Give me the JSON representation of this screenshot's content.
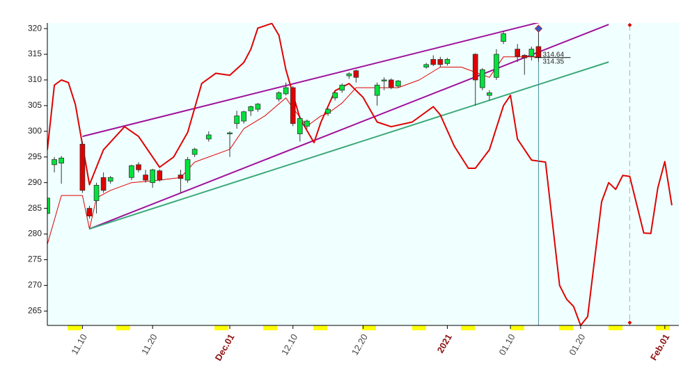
{
  "chart_data": {
    "type": "candlestick",
    "x": [
      "2020-11-05",
      "2020-11-06",
      "2020-11-07",
      "2020-11-10",
      "2020-11-11",
      "2020-11-12",
      "2020-11-13",
      "2020-11-14",
      "2020-11-17",
      "2020-11-18",
      "2020-11-19",
      "2020-11-20",
      "2020-11-21",
      "2020-11-24",
      "2020-11-25",
      "2020-11-26",
      "2020-11-28",
      "2020-12-01",
      "2020-12-02",
      "2020-12-03",
      "2020-12-04",
      "2020-12-05",
      "2020-12-08",
      "2020-12-09",
      "2020-12-10",
      "2020-12-11",
      "2020-12-12",
      "2020-12-15",
      "2020-12-16",
      "2020-12-17",
      "2020-12-18",
      "2020-12-19",
      "2020-12-22",
      "2020-12-23",
      "2020-12-24",
      "2020-12-25",
      "2020-12-29",
      "2020-12-30",
      "2020-12-31",
      "2021-01-01",
      "2021-01-05",
      "2021-01-06",
      "2021-01-07",
      "2021-01-08",
      "2021-01-09",
      "2021-01-11",
      "2021-01-12",
      "2021-01-13",
      "2021-01-14"
    ],
    "open": [
      284,
      293.5,
      293.8,
      297.5,
      285,
      286.5,
      291,
      290.3,
      291,
      293.5,
      291.5,
      290,
      292.3,
      291.5,
      290.5,
      295.5,
      298.5,
      299.5,
      301.5,
      302,
      304,
      304.3,
      306.3,
      307.3,
      308.5,
      299.5,
      301,
      303.5,
      306.5,
      308,
      310.8,
      311.8,
      307,
      309.8,
      310,
      308.8,
      312.5,
      314,
      314,
      313.2,
      315,
      308.5,
      307,
      310.5,
      317.5,
      316,
      314.8,
      314.6,
      316.5
    ],
    "high": [
      287.5,
      295,
      295.2,
      298,
      285.5,
      290,
      292,
      291.3,
      293.5,
      294,
      292.5,
      292.7,
      292.6,
      292.5,
      295,
      296.8,
      300,
      300,
      304,
      304,
      305,
      305.5,
      307.8,
      309.5,
      308.8,
      303,
      302.3,
      304.5,
      307.8,
      309.3,
      311.5,
      312,
      309.5,
      310.5,
      310.3,
      310,
      313.3,
      314.8,
      314.5,
      314.3,
      315.2,
      312.3,
      308,
      316,
      319.5,
      317,
      315,
      316.5,
      320
    ],
    "low": [
      283.5,
      292,
      289.8,
      288,
      283,
      284,
      288,
      289.8,
      290.5,
      292,
      290,
      289,
      290.2,
      288,
      290,
      295,
      298,
      295,
      300.5,
      301.5,
      303,
      303.8,
      305.8,
      307,
      301,
      298,
      300.5,
      303,
      306,
      307.5,
      310.2,
      309.5,
      305,
      308,
      308.2,
      308.5,
      312.2,
      312.7,
      312.5,
      312.8,
      305,
      308,
      306,
      310,
      317,
      313.5,
      311,
      313.8,
      313.5
    ],
    "close": [
      287,
      294.5,
      294.8,
      288.5,
      283.5,
      289.5,
      288.5,
      291,
      293.3,
      292.5,
      290.5,
      292.5,
      290.5,
      290.8,
      294.5,
      296.5,
      299.3,
      299.7,
      303,
      303.8,
      304.8,
      305.3,
      307.5,
      308.5,
      301.5,
      302.5,
      302,
      304.3,
      307.5,
      309,
      311.2,
      310.5,
      309,
      310,
      308.5,
      309.8,
      313,
      313,
      313,
      314,
      310,
      312,
      307.5,
      315,
      319,
      314.6,
      314.3,
      316,
      314.4
    ],
    "up_color": "#00e23c",
    "down_color": "#e00000",
    "lines": [
      {
        "color": "#e00000",
        "width": 2,
        "x": [
          "2020-11-05",
          "2020-11-06",
          "2020-11-07",
          "2020-11-08",
          "2020-11-09",
          "2020-11-11",
          "2020-11-13",
          "2020-11-16",
          "2020-11-18",
          "2020-11-21",
          "2020-11-23",
          "2020-11-25",
          "2020-11-27",
          "2020-11-29",
          "2020-12-01",
          "2020-12-03",
          "2020-12-04",
          "2020-12-05",
          "2020-12-07",
          "2020-12-08",
          "2020-12-09",
          "2020-12-11",
          "2020-12-13",
          "2020-12-14",
          "2020-12-16",
          "2020-12-18",
          "2020-12-20",
          "2020-12-22",
          "2020-12-24",
          "2020-12-27",
          "2020-12-30",
          "2020-12-31",
          "2021-01-02",
          "2021-01-04",
          "2021-01-05",
          "2021-01-07",
          "2021-01-09",
          "2021-01-10",
          "2021-01-11",
          "2021-01-13",
          "2021-01-15",
          "2021-01-16",
          "2021-01-17",
          "2021-01-18",
          "2021-01-19",
          "2021-01-20",
          "2021-01-21",
          "2021-01-23",
          "2021-01-24",
          "2021-01-25",
          "2021-01-26",
          "2021-01-27",
          "2021-01-29",
          "2021-01-30",
          "2021-01-31",
          "2021-02-01",
          "2021-02-02"
        ],
        "values": [
          296.4,
          309,
          310,
          309.5,
          305.2,
          289.6,
          296.4,
          300.9,
          299,
          293,
          295,
          299.8,
          309.3,
          311.3,
          310.9,
          313.4,
          316,
          320.1,
          321,
          318.7,
          312,
          302.5,
          297.8,
          301.8,
          307.9,
          309.3,
          306.6,
          301.8,
          300.9,
          301.8,
          304.8,
          303.2,
          297.1,
          292.8,
          292.8,
          296.4,
          305,
          307,
          298.5,
          294.4,
          294,
          282,
          270,
          267.3,
          265.9,
          262.2,
          263.9,
          286.3,
          290,
          288.7,
          291.4,
          291.2,
          280.2,
          280.1,
          289,
          294.1,
          285.6
        ]
      },
      {
        "color": "#e00000",
        "width": 1,
        "x": [
          "2020-11-05",
          "2020-11-07",
          "2020-11-10",
          "2020-11-11",
          "2020-11-12",
          "2020-11-14",
          "2020-11-17",
          "2020-11-21",
          "2020-11-24",
          "2020-11-26",
          "2020-12-01",
          "2020-12-03",
          "2020-12-06",
          "2020-12-09",
          "2020-12-10",
          "2020-12-12",
          "2020-12-14",
          "2020-12-15",
          "2020-12-17",
          "2020-12-19",
          "2020-12-22",
          "2020-12-25",
          "2020-12-28",
          "2020-12-31",
          "2021-01-03",
          "2021-01-05",
          "2021-01-07",
          "2021-01-09",
          "2021-01-14"
        ],
        "values": [
          278,
          287.5,
          287.5,
          281,
          287,
          288.5,
          290,
          290.5,
          291,
          294,
          296.5,
          300.5,
          303,
          306.5,
          304.5,
          301,
          303,
          303.5,
          305.5,
          308.5,
          308.5,
          308.5,
          310,
          312.5,
          312.5,
          311.5,
          310.5,
          314.5,
          314.5
        ]
      }
    ],
    "trendlines": [
      {
        "color": "#a0109a",
        "x": [
          "2020-11-10",
          "2021-01-24"
        ],
        "values": [
          299,
          324.6
        ]
      },
      {
        "color": "#a0109a",
        "x": [
          "2020-11-11",
          "2021-01-24"
        ],
        "values": [
          281,
          320.8
        ]
      },
      {
        "color": "#3aa878",
        "x": [
          "2020-11-11",
          "2021-01-24"
        ],
        "values": [
          281,
          313.5
        ]
      }
    ],
    "price_labels": [
      314.64,
      314.35
    ],
    "markers": [
      {
        "x": "2021-01-14",
        "color": "#4a8fa0"
      },
      {
        "x": "2021-01-27",
        "color": "#b0b0b0",
        "dashed": true
      }
    ],
    "xlim": [
      "2020-11-05",
      "2021-02-03"
    ],
    "ylim": [
      262.2,
      321.1
    ],
    "yticks": [
      265,
      270,
      275,
      280,
      285,
      290,
      295,
      300,
      305,
      310,
      315,
      320
    ],
    "xticks": [
      {
        "value": "2020-11-10",
        "label": "11.10"
      },
      {
        "value": "2020-11-20",
        "label": "11.20"
      },
      {
        "value": "2020-12-01",
        "label": "Dec.01"
      },
      {
        "value": "2020-12-10",
        "label": "12.10"
      },
      {
        "value": "2020-12-20",
        "label": "12.20"
      },
      {
        "value": "2021-01-01",
        "label": "2021"
      },
      {
        "value": "2021-01-10",
        "label": "01.10"
      },
      {
        "value": "2021-01-20",
        "label": "01.20"
      },
      {
        "value": "2021-02-01",
        "label": "Feb.01"
      }
    ]
  }
}
